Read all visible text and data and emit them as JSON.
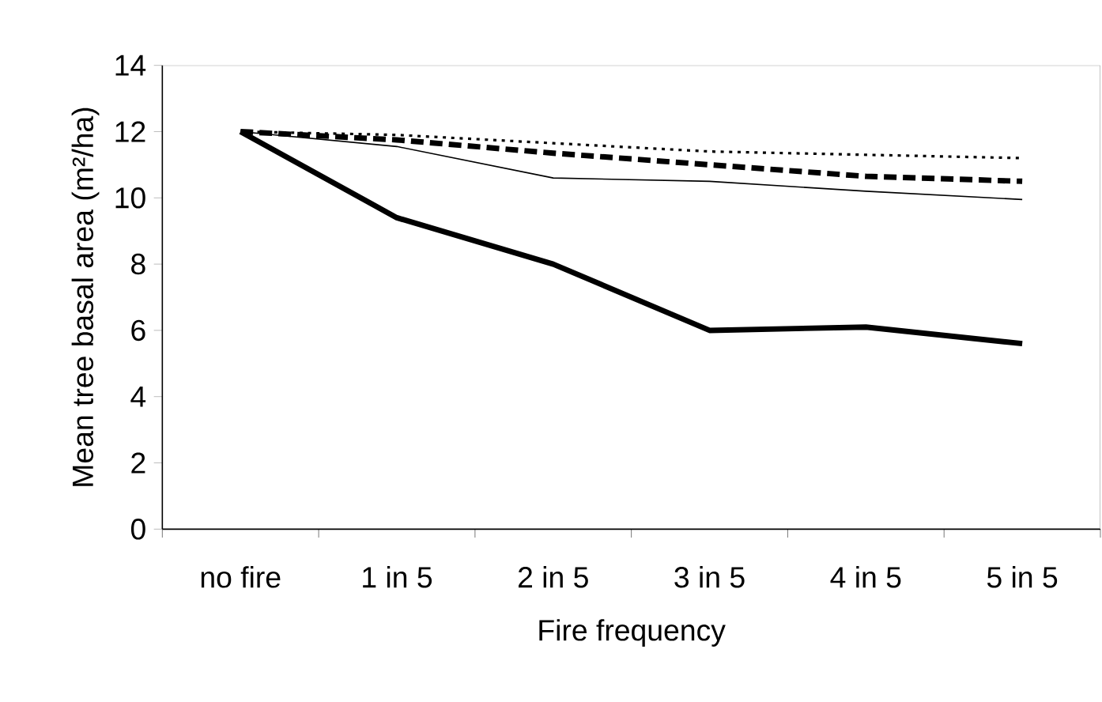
{
  "chart_data": {
    "type": "line",
    "xlabel": "Fire frequency",
    "ylabel": "Mean tree basal area (m²/ha)",
    "categories": [
      "no fire",
      "1 in 5",
      "2 in 5",
      "3 in 5",
      "4 in 5",
      "5 in 5"
    ],
    "ylim": [
      0,
      14
    ],
    "yticks": [
      0,
      2,
      4,
      6,
      8,
      10,
      12,
      14
    ],
    "grid": false,
    "marker": "none",
    "series": [
      {
        "color": "#000000",
        "line_style": "solid",
        "values": [
          12,
          9.4,
          8.0,
          6.0,
          6.1,
          5.6
        ]
      },
      {
        "color": "#000000",
        "line_style": "solid",
        "values": [
          12,
          11.55,
          10.6,
          10.5,
          10.2,
          9.95
        ]
      },
      {
        "color": "#000000",
        "line_style": "dashed",
        "values": [
          12,
          11.75,
          11.35,
          11.0,
          10.65,
          10.5
        ]
      },
      {
        "color": "#000000",
        "line_style": "dotted",
        "values": [
          12,
          11.9,
          11.65,
          11.4,
          11.3,
          11.2
        ]
      }
    ]
  }
}
